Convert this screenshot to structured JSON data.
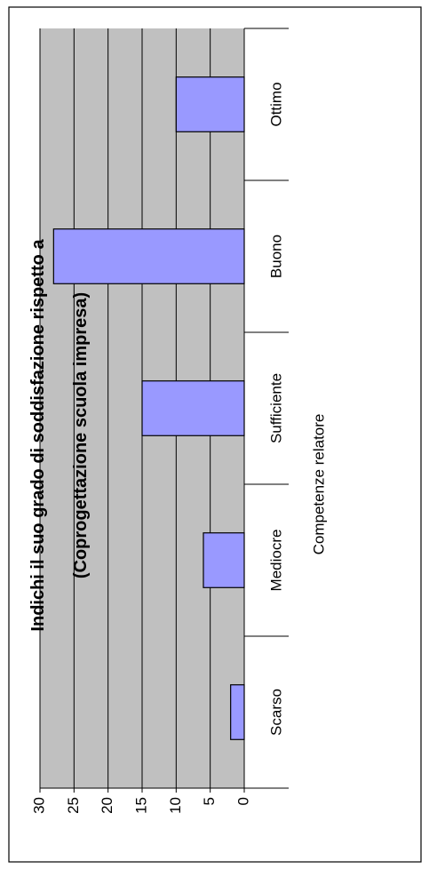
{
  "chart_data": {
    "type": "bar",
    "orientation": "rotated-90",
    "title": [
      "Indichi il suo grado di soddisfazione rispetto a",
      "(Coprogettazione scuola impresa)"
    ],
    "xlabel": "Competenze relatore",
    "ylabel": "",
    "categories": [
      "Ottimo",
      "Buono",
      "Sufficiente",
      "Mediocre",
      "Scarso"
    ],
    "values": [
      10,
      28,
      15,
      6,
      2
    ],
    "yticks": [
      "0",
      "5",
      "10",
      "15",
      "20",
      "25",
      "30"
    ],
    "ylim": [
      0,
      30
    ],
    "grid": true,
    "legend": "none",
    "colors": {
      "bar_fill": "#9999ff",
      "bar_stroke": "#000000",
      "plot_bg": "#c0c0c0",
      "grid": "#000000",
      "page_bg": "#ffffff"
    }
  }
}
